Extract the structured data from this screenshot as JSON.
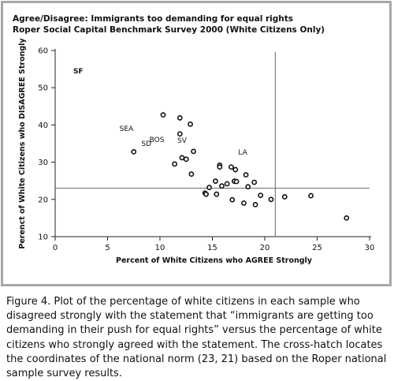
{
  "chart_data": {
    "type": "scatter",
    "title": [
      "Agree/Disagree: Immigrants too demanding for equal rights",
      "Roper Social Capital Benchmark Survey 2000 (White Citizens Only)"
    ],
    "xlabel": "Percent of White Citizens who AGREE Strongly",
    "ylabel": "Perenct of White Citizens who DISAGREE Strongly",
    "xlim": [
      0,
      30
    ],
    "ylim": [
      10,
      60
    ],
    "xticks": [
      0,
      5,
      10,
      15,
      20,
      25,
      30
    ],
    "yticks": [
      10,
      20,
      30,
      40,
      50,
      60
    ],
    "grid": false,
    "reference_lines": {
      "x": 21,
      "y": 23
    },
    "points": [
      {
        "x": 10.3,
        "y": 42.7
      },
      {
        "x": 11.9,
        "y": 41.9
      },
      {
        "x": 12.9,
        "y": 40.2
      },
      {
        "x": 11.9,
        "y": 37.6
      },
      {
        "x": 7.5,
        "y": 32.8
      },
      {
        "x": 13.2,
        "y": 32.9
      },
      {
        "x": 12.1,
        "y": 31.2
      },
      {
        "x": 12.5,
        "y": 30.8
      },
      {
        "x": 11.4,
        "y": 29.5
      },
      {
        "x": 15.7,
        "y": 29.2
      },
      {
        "x": 15.7,
        "y": 28.7
      },
      {
        "x": 16.8,
        "y": 28.7
      },
      {
        "x": 17.2,
        "y": 28.0
      },
      {
        "x": 13.0,
        "y": 26.8
      },
      {
        "x": 18.2,
        "y": 26.6
      },
      {
        "x": 15.3,
        "y": 24.9
      },
      {
        "x": 17.1,
        "y": 24.9
      },
      {
        "x": 17.3,
        "y": 24.8
      },
      {
        "x": 16.4,
        "y": 24.2
      },
      {
        "x": 19.0,
        "y": 24.6
      },
      {
        "x": 15.9,
        "y": 23.6
      },
      {
        "x": 14.7,
        "y": 23.2
      },
      {
        "x": 18.4,
        "y": 23.4
      },
      {
        "x": 14.3,
        "y": 21.7
      },
      {
        "x": 14.4,
        "y": 21.4
      },
      {
        "x": 15.4,
        "y": 21.4
      },
      {
        "x": 19.6,
        "y": 21.1
      },
      {
        "x": 16.9,
        "y": 19.9
      },
      {
        "x": 18.0,
        "y": 19.0
      },
      {
        "x": 19.1,
        "y": 18.6
      },
      {
        "x": 20.6,
        "y": 20.0
      },
      {
        "x": 21.9,
        "y": 20.7
      },
      {
        "x": 24.4,
        "y": 21.0
      },
      {
        "x": 27.8,
        "y": 15.0
      }
    ],
    "annotations": [
      {
        "text": "SF",
        "x": 2.2,
        "y": 53.9,
        "bold": true
      },
      {
        "text": "SEA",
        "x": 6.8,
        "y": 38.4,
        "bold": false
      },
      {
        "text": "BOS",
        "x": 9.7,
        "y": 35.4,
        "bold": false
      },
      {
        "text": "SD",
        "x": 8.7,
        "y": 34.4,
        "bold": false
      },
      {
        "text": "SV",
        "x": 12.1,
        "y": 35.2,
        "bold": false
      },
      {
        "text": "LA",
        "x": 17.9,
        "y": 32.0,
        "bold": false
      }
    ]
  },
  "caption": "Figure 4. Plot of the percentage of white citizens in each sample who disagreed strongly with the statement that “immigrants are getting too demanding in their push for equal rights” versus the percentage of white citizens who strongly agreed with the statement. The cross-hatch locates the coordinates of the national norm (23, 21) based on the Roper national sample survey results."
}
